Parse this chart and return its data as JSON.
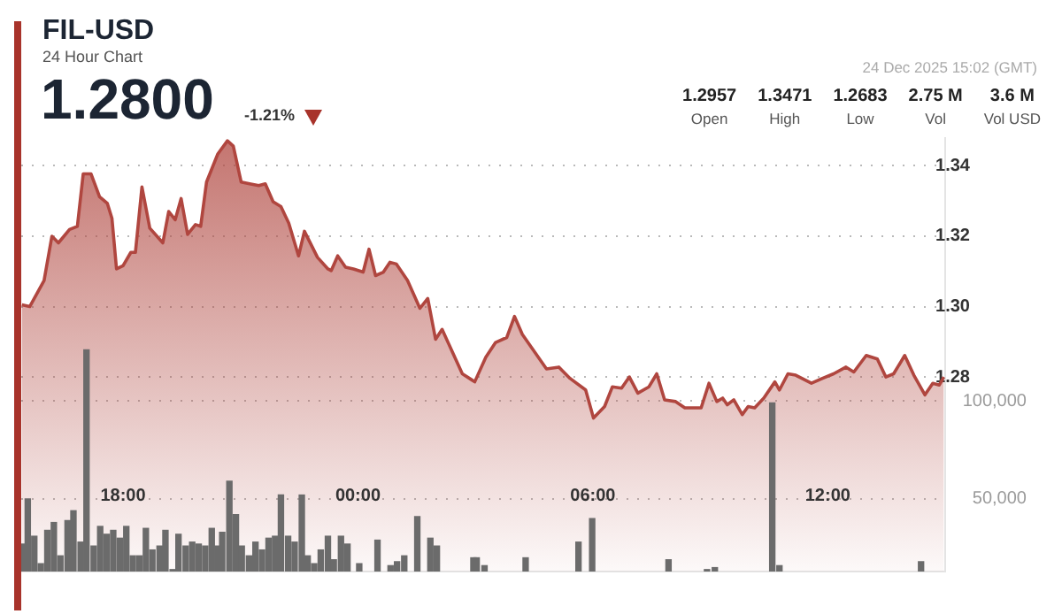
{
  "chart_data": {
    "type": "area",
    "title": "FIL-USD",
    "subtitle": "24 Hour Chart",
    "annotations": [
      "1.2800",
      "-1.21%",
      "24 Dec 2025 15:02 (GMT)",
      "1.2957",
      "Open",
      "1.3471",
      "High",
      "1.2683",
      "Low",
      "2.75 M",
      "Vol",
      "3.6 M",
      "Vol USD"
    ],
    "xlim": [
      "2025-12-23T15:24",
      "2025-12-24T15:00"
    ],
    "xticks": [
      {
        "value": "2025-12-23T18:00",
        "label": "18:00"
      },
      {
        "value": "2025-12-24T00:00",
        "label": "00:00"
      },
      {
        "value": "2025-12-24T06:00",
        "label": "06:00"
      },
      {
        "value": "2025-12-24T12:00",
        "label": "12:00"
      }
    ],
    "ylim": [
      1.2247,
      1.3479
    ],
    "yticks": [
      {
        "value": 1.28,
        "label": "1.28"
      },
      {
        "value": 1.3,
        "label": "1.30"
      },
      {
        "value": 1.32,
        "label": "1.32"
      },
      {
        "value": 1.34,
        "label": "1.34"
      }
    ],
    "y2lim": [
      13000,
      234000
    ],
    "y2ticks": [
      {
        "value": 50000,
        "label": "50,000"
      },
      {
        "value": 100000,
        "label": "100,000"
      }
    ],
    "grid": "y",
    "legend": false,
    "marker": "none",
    "series": [
      {
        "color": "#b0463f",
        "x": [
          "2025-12-23T15:25",
          "2025-12-23T15:37",
          "2025-12-23T15:59",
          "2025-12-23T16:11",
          "2025-12-23T16:21",
          "2025-12-23T16:38",
          "2025-12-23T16:50",
          "2025-12-23T16:59",
          "2025-12-23T17:11",
          "2025-12-23T17:24",
          "2025-12-23T17:36",
          "2025-12-23T17:43",
          "2025-12-23T17:50",
          "2025-12-23T18:00",
          "2025-12-23T18:12",
          "2025-12-23T18:19",
          "2025-12-23T18:29",
          "2025-12-23T18:41",
          "2025-12-23T19:01",
          "2025-12-23T19:10",
          "2025-12-23T19:20",
          "2025-12-23T19:29",
          "2025-12-23T19:39",
          "2025-12-23T19:51",
          "2025-12-23T19:59",
          "2025-12-23T20:08",
          "2025-12-23T20:25",
          "2025-12-23T20:40",
          "2025-12-23T20:49",
          "2025-12-23T21:01",
          "2025-12-23T21:14",
          "2025-12-23T21:28",
          "2025-12-23T21:38",
          "2025-12-23T21:50",
          "2025-12-23T22:02",
          "2025-12-23T22:14",
          "2025-12-23T22:29",
          "2025-12-23T22:38",
          "2025-12-23T22:58",
          "2025-12-23T23:14",
          "2025-12-23T23:19",
          "2025-12-23T23:29",
          "2025-12-23T23:41",
          "2025-12-23T23:53",
          "2025-12-24T00:08",
          "2025-12-24T00:17",
          "2025-12-24T00:27",
          "2025-12-24T00:39",
          "2025-12-24T00:49",
          "2025-12-24T00:59",
          "2025-12-24T01:16",
          "2025-12-24T01:35",
          "2025-12-24T01:47",
          "2025-12-24T01:59",
          "2025-12-24T02:09",
          "2025-12-24T02:40",
          "2025-12-24T02:55",
          "2025-12-24T02:59",
          "2025-12-24T03:16",
          "2025-12-24T03:31",
          "2025-12-24T03:48",
          "2025-12-24T04:00",
          "2025-12-24T04:12",
          "2025-12-24T04:49",
          "2025-12-24T05:08",
          "2025-12-24T05:25",
          "2025-12-24T05:49",
          "2025-12-24T06:01",
          "2025-12-24T06:18",
          "2025-12-24T06:30",
          "2025-12-24T06:44",
          "2025-12-24T06:56",
          "2025-12-24T07:09",
          "2025-12-24T07:26",
          "2025-12-24T07:38",
          "2025-12-24T07:50",
          "2025-12-24T08:07",
          "2025-12-24T08:21",
          "2025-12-24T08:46",
          "2025-12-24T08:58",
          "2025-12-24T09:10",
          "2025-12-24T09:19",
          "2025-12-24T09:26",
          "2025-12-24T09:36",
          "2025-12-24T09:49",
          "2025-12-24T09:58",
          "2025-12-24T10:08",
          "2025-12-24T10:22",
          "2025-12-24T10:39",
          "2025-12-24T10:46",
          "2025-12-24T10:59",
          "2025-12-24T11:11",
          "2025-12-24T11:35",
          "2025-12-24T11:52",
          "2025-12-24T12:09",
          "2025-12-24T12:28",
          "2025-12-24T12:40",
          "2025-12-24T12:59",
          "2025-12-24T13:16",
          "2025-12-24T13:29",
          "2025-12-24T13:41",
          "2025-12-24T13:58",
          "2025-12-24T14:12",
          "2025-12-24T14:29",
          "2025-12-24T14:41",
          "2025-12-24T14:51",
          "2025-12-24T14:58"
        ],
        "values": [
          1.3005,
          1.3,
          1.3074,
          1.32,
          1.3181,
          1.3219,
          1.3228,
          1.3377,
          1.3377,
          1.3312,
          1.3293,
          1.3251,
          1.3107,
          1.3116,
          1.3154,
          1.3154,
          1.334,
          1.3223,
          1.3181,
          1.327,
          1.3247,
          1.3307,
          1.3205,
          1.3233,
          1.3228,
          1.3354,
          1.3433,
          1.3471,
          1.3456,
          1.3354,
          1.3349,
          1.3344,
          1.3349,
          1.3298,
          1.3284,
          1.3237,
          1.3144,
          1.3214,
          1.314,
          1.3107,
          1.3102,
          1.3144,
          1.3112,
          1.3107,
          1.3098,
          1.3163,
          1.3088,
          1.3098,
          1.3126,
          1.3121,
          1.3074,
          1.2995,
          1.3023,
          1.2907,
          1.2935,
          1.2809,
          1.2791,
          1.2786,
          1.2856,
          1.2898,
          1.2912,
          1.2972,
          1.2921,
          1.2823,
          1.2828,
          1.2796,
          1.2763,
          1.2683,
          1.2716,
          1.2772,
          1.2768,
          1.28,
          1.2754,
          1.2772,
          1.2809,
          1.2735,
          1.273,
          1.2712,
          1.2712,
          1.2782,
          1.273,
          1.274,
          1.2721,
          1.2735,
          1.2693,
          1.2716,
          1.2712,
          1.274,
          1.2786,
          1.2763,
          1.2809,
          1.2805,
          1.2782,
          1.2796,
          1.2809,
          1.2828,
          1.2814,
          1.2861,
          1.2851,
          1.28,
          1.2809,
          1.2861,
          1.2805,
          1.2749,
          1.2782,
          1.2777,
          1.28
        ]
      },
      {
        "type": "bar",
        "axis": "y2",
        "color": "#6b6b6b",
        "x": [
          "2025-12-23T15:28",
          "2025-12-23T15:34",
          "2025-12-23T15:44",
          "2025-12-23T15:54",
          "2025-12-23T16:04",
          "2025-12-23T16:14",
          "2025-12-23T16:24",
          "2025-12-23T16:35",
          "2025-12-23T16:44",
          "2025-12-23T16:55",
          "2025-12-23T17:04",
          "2025-12-23T17:15",
          "2025-12-23T17:25",
          "2025-12-23T17:35",
          "2025-12-23T17:45",
          "2025-12-23T17:55",
          "2025-12-23T18:05",
          "2025-12-23T18:15",
          "2025-12-23T18:25",
          "2025-12-23T18:35",
          "2025-12-23T18:45",
          "2025-12-23T18:56",
          "2025-12-23T19:05",
          "2025-12-23T19:16",
          "2025-12-23T19:25",
          "2025-12-23T19:36",
          "2025-12-23T19:46",
          "2025-12-23T19:56",
          "2025-12-23T20:06",
          "2025-12-23T20:16",
          "2025-12-23T20:25",
          "2025-12-23T20:32",
          "2025-12-23T20:43",
          "2025-12-23T20:53",
          "2025-12-23T21:02",
          "2025-12-23T21:13",
          "2025-12-23T21:23",
          "2025-12-23T21:33",
          "2025-12-23T21:43",
          "2025-12-23T21:53",
          "2025-12-23T22:02",
          "2025-12-23T22:13",
          "2025-12-23T22:23",
          "2025-12-23T22:34",
          "2025-12-23T22:43",
          "2025-12-23T22:53",
          "2025-12-23T23:03",
          "2025-12-23T23:14",
          "2025-12-23T23:23",
          "2025-12-23T23:34",
          "2025-12-23T23:44",
          "2025-12-24T00:02",
          "2025-12-24T00:30",
          "2025-12-24T00:50",
          "2025-12-24T01:00",
          "2025-12-24T01:11",
          "2025-12-24T01:31",
          "2025-12-24T01:51",
          "2025-12-24T02:01",
          "2025-12-24T02:57",
          "2025-12-24T03:02",
          "2025-12-24T03:14",
          "2025-12-24T04:17",
          "2025-12-24T05:38",
          "2025-12-24T05:59",
          "2025-12-24T07:56",
          "2025-12-24T08:55",
          "2025-12-24T09:07",
          "2025-12-24T10:35",
          "2025-12-24T10:46",
          "2025-12-24T14:23"
        ],
        "values": [
          27000,
          50000,
          31000,
          17000,
          34000,
          38000,
          21000,
          39000,
          44000,
          28000,
          126000,
          26000,
          36000,
          32000,
          34000,
          30000,
          36000,
          21000,
          21000,
          35000,
          24000,
          26000,
          34000,
          14000,
          32000,
          26000,
          28000,
          27000,
          26000,
          35000,
          26000,
          33000,
          59000,
          42000,
          26000,
          21000,
          28000,
          24000,
          30000,
          31000,
          52000,
          31000,
          28000,
          52000,
          21000,
          17000,
          24000,
          31000,
          19000,
          31000,
          27000,
          17000,
          29000,
          16000,
          18000,
          21000,
          41000,
          30000,
          26000,
          20000,
          20000,
          16000,
          20000,
          28000,
          40000,
          19000,
          14000,
          15000,
          99000,
          16000,
          18000
        ]
      }
    ]
  }
}
